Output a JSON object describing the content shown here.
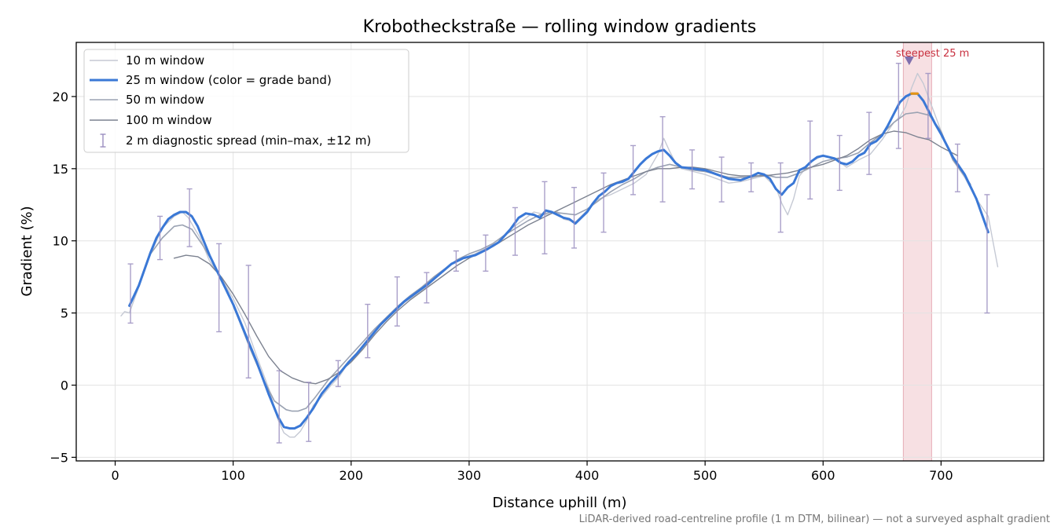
{
  "chart_data": {
    "type": "line",
    "title": "Krobotheckstraße — rolling window gradients",
    "xlabel": "Distance uphill (m)",
    "ylabel": "Gradient (%)",
    "xlim": [
      -33,
      787
    ],
    "ylim": [
      -5.25,
      23.75
    ],
    "xticks": [
      0,
      100,
      200,
      300,
      400,
      500,
      600,
      700
    ],
    "yticks": [
      -5,
      0,
      5,
      10,
      15,
      20
    ],
    "grid": true,
    "legend_position": "top-left",
    "footnote": "LiDAR-derived road-centreline profile (1 m DTM, bilinear) — not a surveyed asphalt gradient",
    "highlight": {
      "x_start": 668,
      "x_end": 692,
      "label": "steepest 25 m",
      "marker": {
        "x": 673,
        "y": 22.5
      }
    },
    "series": [
      {
        "name": "10 m window",
        "color": "#c5c9d4",
        "x": [
          5,
          8,
          12,
          20,
          30,
          40,
          50,
          57,
          62,
          67,
          72,
          80,
          90,
          100,
          110,
          120,
          130,
          138,
          143,
          148,
          152,
          157,
          162,
          168,
          175,
          183,
          190,
          198,
          205,
          215,
          225,
          235,
          245,
          255,
          265,
          275,
          285,
          295,
          305,
          315,
          325,
          335,
          345,
          355,
          365,
          375,
          380,
          390,
          400,
          410,
          420,
          430,
          440,
          450,
          455,
          460,
          465,
          470,
          475,
          480,
          490,
          500,
          510,
          520,
          530,
          540,
          550,
          560,
          565,
          570,
          575,
          580,
          590,
          600,
          610,
          620,
          630,
          640,
          650,
          660,
          665,
          670,
          675,
          680,
          685,
          690,
          700,
          710,
          720,
          730,
          740,
          748
        ],
        "values": [
          4.8,
          5.1,
          5.0,
          6.8,
          9.1,
          10.9,
          11.7,
          12.0,
          11.6,
          10.9,
          10.2,
          8.6,
          7.4,
          6.0,
          4.3,
          2.0,
          -0.2,
          -2.4,
          -3.3,
          -3.6,
          -3.6,
          -3.2,
          -2.5,
          -1.4,
          -0.8,
          0.0,
          0.6,
          1.6,
          2.2,
          3.3,
          4.2,
          5.0,
          5.7,
          6.3,
          6.9,
          7.7,
          8.4,
          8.8,
          9.1,
          9.5,
          9.9,
          10.8,
          11.4,
          12.0,
          11.8,
          12.0,
          11.5,
          11.3,
          12.1,
          12.9,
          13.2,
          13.6,
          14.0,
          14.6,
          15.3,
          16.0,
          17.1,
          16.2,
          15.4,
          15.0,
          14.8,
          14.6,
          14.3,
          14.0,
          14.1,
          14.3,
          14.5,
          13.7,
          12.6,
          11.8,
          12.9,
          14.5,
          15.5,
          15.9,
          15.7,
          15.1,
          15.6,
          16.0,
          17.0,
          18.2,
          18.6,
          19.3,
          20.6,
          21.6,
          20.9,
          19.8,
          17.6,
          15.6,
          14.4,
          12.9,
          11.7,
          8.2
        ]
      },
      {
        "name": "25 m window (color = grade band)",
        "color": "#3a78d6",
        "x": [
          12,
          20,
          30,
          35,
          40,
          45,
          50,
          55,
          60,
          65,
          70,
          75,
          80,
          90,
          100,
          110,
          120,
          130,
          138,
          143,
          148,
          152,
          157,
          162,
          168,
          175,
          183,
          190,
          198,
          205,
          215,
          225,
          235,
          245,
          255,
          265,
          275,
          285,
          295,
          305,
          315,
          325,
          335,
          342,
          348,
          355,
          360,
          365,
          370,
          375,
          380,
          385,
          390,
          395,
          400,
          405,
          410,
          415,
          420,
          425,
          430,
          435,
          440,
          445,
          450,
          455,
          460,
          465,
          470,
          475,
          480,
          490,
          500,
          510,
          520,
          530,
          540,
          545,
          550,
          555,
          560,
          565,
          570,
          575,
          580,
          585,
          590,
          595,
          600,
          605,
          610,
          615,
          620,
          625,
          630,
          635,
          640,
          645,
          650,
          655,
          660,
          665,
          670,
          675,
          680,
          685,
          690,
          695,
          700,
          710,
          720,
          730,
          740
        ],
        "values": [
          5.5,
          6.9,
          9.2,
          10.2,
          10.9,
          11.5,
          11.8,
          12.0,
          12.0,
          11.7,
          11.0,
          10.0,
          9.0,
          7.3,
          5.6,
          3.6,
          1.6,
          -0.6,
          -2.2,
          -2.9,
          -3.0,
          -3.0,
          -2.8,
          -2.3,
          -1.6,
          -0.6,
          0.2,
          0.8,
          1.6,
          2.2,
          3.2,
          4.2,
          5.0,
          5.8,
          6.4,
          7.0,
          7.7,
          8.4,
          8.8,
          9.0,
          9.4,
          9.9,
          10.8,
          11.6,
          11.9,
          11.8,
          11.6,
          12.1,
          12.0,
          11.8,
          11.6,
          11.5,
          11.2,
          11.6,
          12.0,
          12.6,
          13.1,
          13.4,
          13.8,
          14.0,
          14.1,
          14.3,
          14.8,
          15.3,
          15.7,
          16.0,
          16.2,
          16.3,
          15.9,
          15.4,
          15.1,
          15.0,
          14.9,
          14.6,
          14.3,
          14.2,
          14.5,
          14.7,
          14.6,
          14.3,
          13.6,
          13.2,
          13.7,
          14.0,
          14.9,
          15.1,
          15.5,
          15.8,
          15.9,
          15.8,
          15.7,
          15.4,
          15.3,
          15.5,
          15.9,
          16.1,
          16.7,
          16.9,
          17.3,
          18.0,
          18.8,
          19.6,
          20.0,
          20.2,
          20.2,
          19.7,
          18.9,
          18.1,
          17.4,
          15.8,
          14.6,
          12.9,
          10.6
        ],
        "highlight_color": "#e69512",
        "highlight_range": [
          675,
          682
        ]
      },
      {
        "name": "50 m window",
        "color": "#9aa2b2",
        "x": [
          25,
          30,
          40,
          50,
          57,
          65,
          75,
          85,
          95,
          105,
          115,
          125,
          135,
          145,
          150,
          155,
          162,
          170,
          180,
          190,
          200,
          210,
          220,
          230,
          240,
          250,
          260,
          270,
          280,
          290,
          300,
          310,
          320,
          330,
          340,
          350,
          360,
          370,
          380,
          390,
          400,
          410,
          420,
          430,
          440,
          450,
          460,
          470,
          480,
          490,
          500,
          510,
          520,
          530,
          540,
          550,
          560,
          570,
          580,
          590,
          600,
          610,
          620,
          630,
          640,
          650,
          660,
          670,
          680,
          690,
          700,
          710,
          720,
          725
        ],
        "values": [
          8.1,
          9.1,
          10.2,
          11.0,
          11.1,
          10.8,
          9.6,
          8.2,
          6.5,
          4.5,
          2.4,
          0.5,
          -1.1,
          -1.7,
          -1.8,
          -1.8,
          -1.6,
          -0.8,
          0.3,
          1.2,
          2.1,
          3.0,
          3.9,
          4.7,
          5.5,
          6.2,
          6.8,
          7.5,
          8.1,
          8.7,
          9.1,
          9.4,
          9.8,
          10.4,
          10.9,
          11.4,
          11.8,
          12.0,
          11.9,
          11.8,
          12.2,
          12.8,
          13.4,
          13.9,
          14.3,
          14.8,
          15.1,
          15.3,
          15.1,
          14.9,
          14.8,
          14.6,
          14.4,
          14.4,
          14.4,
          14.6,
          14.4,
          14.4,
          14.7,
          15.1,
          15.5,
          15.7,
          15.8,
          16.1,
          16.8,
          17.4,
          18.2,
          18.8,
          18.9,
          18.7,
          17.6,
          15.6,
          14.5,
          13.9
        ]
      },
      {
        "name": "100 m window",
        "color": "#7c8290",
        "x": [
          50,
          60,
          70,
          80,
          90,
          100,
          110,
          120,
          130,
          140,
          150,
          160,
          170,
          180,
          190,
          200,
          210,
          220,
          230,
          240,
          250,
          260,
          270,
          280,
          290,
          300,
          310,
          320,
          330,
          340,
          350,
          360,
          370,
          380,
          390,
          400,
          410,
          420,
          430,
          440,
          450,
          460,
          470,
          480,
          490,
          500,
          510,
          520,
          530,
          540,
          550,
          560,
          570,
          580,
          590,
          600,
          610,
          620,
          630,
          640,
          650,
          660,
          670,
          680,
          690,
          700,
          714
        ],
        "values": [
          8.8,
          9.0,
          8.9,
          8.4,
          7.5,
          6.3,
          4.9,
          3.4,
          2.0,
          1.0,
          0.5,
          0.2,
          0.1,
          0.4,
          0.9,
          1.6,
          2.5,
          3.5,
          4.4,
          5.2,
          5.9,
          6.5,
          7.1,
          7.7,
          8.3,
          8.8,
          9.2,
          9.6,
          10.1,
          10.6,
          11.1,
          11.5,
          11.9,
          12.3,
          12.7,
          13.1,
          13.5,
          13.9,
          14.2,
          14.5,
          14.8,
          15.0,
          15.0,
          15.1,
          15.1,
          15.0,
          14.8,
          14.6,
          14.5,
          14.5,
          14.5,
          14.6,
          14.7,
          14.9,
          15.1,
          15.3,
          15.6,
          15.9,
          16.4,
          17.0,
          17.4,
          17.6,
          17.5,
          17.2,
          17.0,
          16.5,
          15.9
        ]
      }
    ],
    "error_bars": {
      "name": "2 m diagnostic spread (min–max, ±12 m)",
      "color": "#9b8fc0",
      "points": [
        {
          "x": 13,
          "low": 4.3,
          "high": 8.4
        },
        {
          "x": 38,
          "low": 8.7,
          "high": 11.7
        },
        {
          "x": 63,
          "low": 9.6,
          "high": 13.6
        },
        {
          "x": 88,
          "low": 3.7,
          "high": 9.8
        },
        {
          "x": 113,
          "low": 0.5,
          "high": 8.3
        },
        {
          "x": 139,
          "low": -4.0,
          "high": 1.0
        },
        {
          "x": 164,
          "low": -3.9,
          "high": 0.2
        },
        {
          "x": 189,
          "low": -0.1,
          "high": 1.7
        },
        {
          "x": 214,
          "low": 1.9,
          "high": 5.6
        },
        {
          "x": 239,
          "low": 4.1,
          "high": 7.5
        },
        {
          "x": 264,
          "low": 5.7,
          "high": 7.8
        },
        {
          "x": 289,
          "low": 7.9,
          "high": 9.3
        },
        {
          "x": 314,
          "low": 7.9,
          "high": 10.4
        },
        {
          "x": 339,
          "low": 9.0,
          "high": 12.3
        },
        {
          "x": 364,
          "low": 9.1,
          "high": 14.1
        },
        {
          "x": 389,
          "low": 9.5,
          "high": 13.7
        },
        {
          "x": 414,
          "low": 10.6,
          "high": 14.7
        },
        {
          "x": 439,
          "low": 13.2,
          "high": 16.6
        },
        {
          "x": 464,
          "low": 12.7,
          "high": 18.6
        },
        {
          "x": 489,
          "low": 13.6,
          "high": 16.3
        },
        {
          "x": 514,
          "low": 12.7,
          "high": 15.8
        },
        {
          "x": 539,
          "low": 13.4,
          "high": 15.4
        },
        {
          "x": 564,
          "low": 10.6,
          "high": 15.4
        },
        {
          "x": 589,
          "low": 12.9,
          "high": 18.3
        },
        {
          "x": 614,
          "low": 13.5,
          "high": 17.3
        },
        {
          "x": 639,
          "low": 14.6,
          "high": 18.9
        },
        {
          "x": 664,
          "low": 16.4,
          "high": 22.3
        },
        {
          "x": 689,
          "low": 17.1,
          "high": 21.6
        },
        {
          "x": 714,
          "low": 13.4,
          "high": 16.7
        },
        {
          "x": 739,
          "low": 5.0,
          "high": 13.2
        }
      ]
    }
  }
}
